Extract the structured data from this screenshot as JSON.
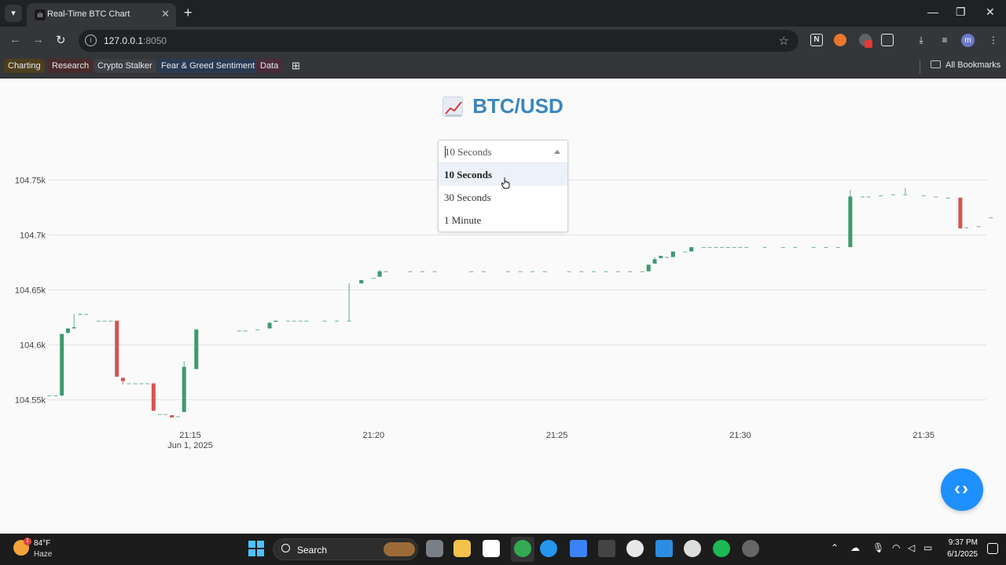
{
  "browser": {
    "tab_title": "Real-Time BTC Chart",
    "url_host": "127.0.0.1",
    "url_port": ":8050",
    "bookmarks": [
      {
        "label": "Charting",
        "color": "#4d3f1e"
      },
      {
        "label": "Research",
        "color": "#4a2b2b"
      },
      {
        "label": "Crypto Stalker",
        "color": "#3d3f44"
      },
      {
        "label": "Fear & Greed Sentiment",
        "color": "#283a52"
      },
      {
        "label": "Data",
        "color": "#4a2b3a"
      }
    ],
    "all_bookmarks": "All Bookmarks",
    "avatar_letter": "m"
  },
  "page": {
    "title": "BTC/USD",
    "interval_select": {
      "value": "10 Seconds",
      "options": [
        "10 Seconds",
        "30 Seconds",
        "1 Minute"
      ],
      "highlighted": "10 Seconds"
    }
  },
  "chart_data": {
    "type": "candlestick",
    "xlabel": "",
    "ylabel": "",
    "x_ticks": [
      "21:15",
      "21:20",
      "21:25",
      "21:30",
      "21:35"
    ],
    "x_date_label": "Jun 1, 2025",
    "y_ticks": [
      "104.55k",
      "104.6k",
      "104.65k",
      "104.7k",
      "104.75k"
    ],
    "y_tick_values": [
      104550,
      104600,
      104650,
      104700,
      104750
    ],
    "ylim": [
      104525,
      104770
    ],
    "x_range_minutes": [
      21.2,
      21.6
    ],
    "up_color": "#3d9970",
    "down_color": "#d9534f",
    "candles": [
      {
        "t": "21:11:10",
        "o": 104554,
        "h": 104554,
        "l": 104554,
        "c": 104554
      },
      {
        "t": "21:11:20",
        "o": 104554,
        "h": 104554,
        "l": 104554,
        "c": 104554
      },
      {
        "t": "21:11:30",
        "o": 104554,
        "h": 104610,
        "l": 104553,
        "c": 104610
      },
      {
        "t": "21:11:40",
        "o": 104611,
        "h": 104615,
        "l": 104610,
        "c": 104615
      },
      {
        "t": "21:11:50",
        "o": 104615,
        "h": 104628,
        "l": 104615,
        "c": 104616
      },
      {
        "t": "21:12:00",
        "o": 104628,
        "h": 104629,
        "l": 104628,
        "c": 104628
      },
      {
        "t": "21:12:10",
        "o": 104628,
        "h": 104628,
        "l": 104628,
        "c": 104628
      },
      {
        "t": "21:12:30",
        "o": 104622,
        "h": 104622,
        "l": 104622,
        "c": 104622
      },
      {
        "t": "21:12:40",
        "o": 104622,
        "h": 104622,
        "l": 104622,
        "c": 104622
      },
      {
        "t": "21:12:50",
        "o": 104622,
        "h": 104622,
        "l": 104622,
        "c": 104622
      },
      {
        "t": "21:13:00",
        "o": 104622,
        "h": 104622,
        "l": 104571,
        "c": 104571
      },
      {
        "t": "21:13:10",
        "o": 104570,
        "h": 104570,
        "l": 104564,
        "c": 104567
      },
      {
        "t": "21:13:20",
        "o": 104565,
        "h": 104565,
        "l": 104565,
        "c": 104565
      },
      {
        "t": "21:13:30",
        "o": 104565,
        "h": 104565,
        "l": 104565,
        "c": 104565
      },
      {
        "t": "21:13:40",
        "o": 104565,
        "h": 104565,
        "l": 104565,
        "c": 104565
      },
      {
        "t": "21:13:50",
        "o": 104565,
        "h": 104565,
        "l": 104565,
        "c": 104565
      },
      {
        "t": "21:14:00",
        "o": 104565,
        "h": 104565,
        "l": 104540,
        "c": 104540
      },
      {
        "t": "21:14:10",
        "o": 104537,
        "h": 104537,
        "l": 104537,
        "c": 104537
      },
      {
        "t": "21:14:20",
        "o": 104537,
        "h": 104537,
        "l": 104537,
        "c": 104537
      },
      {
        "t": "21:14:30",
        "o": 104536,
        "h": 104536,
        "l": 104534,
        "c": 104534
      },
      {
        "t": "21:14:40",
        "o": 104535,
        "h": 104535,
        "l": 104535,
        "c": 104535
      },
      {
        "t": "21:14:50",
        "o": 104539,
        "h": 104585,
        "l": 104539,
        "c": 104580
      },
      {
        "t": "21:15:10",
        "o": 104578,
        "h": 104614,
        "l": 104578,
        "c": 104614
      },
      {
        "t": "21:16:20",
        "o": 104613,
        "h": 104613,
        "l": 104613,
        "c": 104613
      },
      {
        "t": "21:16:30",
        "o": 104613,
        "h": 104613,
        "l": 104613,
        "c": 104613
      },
      {
        "t": "21:16:50",
        "o": 104614,
        "h": 104614,
        "l": 104614,
        "c": 104614
      },
      {
        "t": "21:17:10",
        "o": 104615,
        "h": 104621,
        "l": 104615,
        "c": 104620
      },
      {
        "t": "21:17:20",
        "o": 104621,
        "h": 104622,
        "l": 104621,
        "c": 104622
      },
      {
        "t": "21:17:40",
        "o": 104622,
        "h": 104622,
        "l": 104622,
        "c": 104622
      },
      {
        "t": "21:17:50",
        "o": 104622,
        "h": 104622,
        "l": 104622,
        "c": 104622
      },
      {
        "t": "21:18:00",
        "o": 104622,
        "h": 104622,
        "l": 104622,
        "c": 104622
      },
      {
        "t": "21:18:10",
        "o": 104622,
        "h": 104622,
        "l": 104622,
        "c": 104622
      },
      {
        "t": "21:18:40",
        "o": 104622,
        "h": 104622,
        "l": 104622,
        "c": 104622
      },
      {
        "t": "21:19:00",
        "o": 104622,
        "h": 104622,
        "l": 104622,
        "c": 104622
      },
      {
        "t": "21:19:20",
        "o": 104622,
        "h": 104656,
        "l": 104622,
        "c": 104622
      },
      {
        "t": "21:19:40",
        "o": 104656,
        "h": 104659,
        "l": 104656,
        "c": 104659
      },
      {
        "t": "21:20:00",
        "o": 104661,
        "h": 104661,
        "l": 104661,
        "c": 104661
      },
      {
        "t": "21:20:10",
        "o": 104662,
        "h": 104668,
        "l": 104662,
        "c": 104667
      },
      {
        "t": "21:20:20",
        "o": 104667,
        "h": 104667,
        "l": 104667,
        "c": 104667
      },
      {
        "t": "21:21:00",
        "o": 104667,
        "h": 104667,
        "l": 104667,
        "c": 104667
      },
      {
        "t": "21:21:20",
        "o": 104667,
        "h": 104667,
        "l": 104667,
        "c": 104667
      },
      {
        "t": "21:21:40",
        "o": 104667,
        "h": 104667,
        "l": 104667,
        "c": 104667
      },
      {
        "t": "21:22:40",
        "o": 104667,
        "h": 104667,
        "l": 104667,
        "c": 104667
      },
      {
        "t": "21:23:00",
        "o": 104667,
        "h": 104667,
        "l": 104667,
        "c": 104667
      },
      {
        "t": "21:23:40",
        "o": 104667,
        "h": 104667,
        "l": 104667,
        "c": 104667
      },
      {
        "t": "21:24:00",
        "o": 104667,
        "h": 104667,
        "l": 104667,
        "c": 104667
      },
      {
        "t": "21:24:20",
        "o": 104667,
        "h": 104667,
        "l": 104667,
        "c": 104667
      },
      {
        "t": "21:24:40",
        "o": 104667,
        "h": 104667,
        "l": 104667,
        "c": 104667
      },
      {
        "t": "21:25:20",
        "o": 104667,
        "h": 104667,
        "l": 104667,
        "c": 104667
      },
      {
        "t": "21:25:40",
        "o": 104667,
        "h": 104667,
        "l": 104667,
        "c": 104667
      },
      {
        "t": "21:26:00",
        "o": 104667,
        "h": 104667,
        "l": 104667,
        "c": 104667
      },
      {
        "t": "21:26:20",
        "o": 104667,
        "h": 104667,
        "l": 104667,
        "c": 104667
      },
      {
        "t": "21:26:40",
        "o": 104667,
        "h": 104667,
        "l": 104667,
        "c": 104667
      },
      {
        "t": "21:27:00",
        "o": 104667,
        "h": 104667,
        "l": 104667,
        "c": 104667
      },
      {
        "t": "21:27:20",
        "o": 104667,
        "h": 104667,
        "l": 104667,
        "c": 104667
      },
      {
        "t": "21:27:30",
        "o": 104667,
        "h": 104673,
        "l": 104667,
        "c": 104673
      },
      {
        "t": "21:27:40",
        "o": 104674,
        "h": 104680,
        "l": 104674,
        "c": 104678
      },
      {
        "t": "21:27:50",
        "o": 104679,
        "h": 104681,
        "l": 104679,
        "c": 104681
      },
      {
        "t": "21:28:00",
        "o": 104680,
        "h": 104680,
        "l": 104680,
        "c": 104680
      },
      {
        "t": "21:28:10",
        "o": 104680,
        "h": 104685,
        "l": 104680,
        "c": 104685
      },
      {
        "t": "21:28:30",
        "o": 104685,
        "h": 104685,
        "l": 104685,
        "c": 104685
      },
      {
        "t": "21:28:40",
        "o": 104685,
        "h": 104689,
        "l": 104685,
        "c": 104689
      },
      {
        "t": "21:29:00",
        "o": 104689,
        "h": 104689,
        "l": 104689,
        "c": 104689
      },
      {
        "t": "21:29:10",
        "o": 104689,
        "h": 104689,
        "l": 104689,
        "c": 104689
      },
      {
        "t": "21:29:20",
        "o": 104689,
        "h": 104689,
        "l": 104689,
        "c": 104689
      },
      {
        "t": "21:29:30",
        "o": 104689,
        "h": 104689,
        "l": 104689,
        "c": 104689
      },
      {
        "t": "21:29:40",
        "o": 104689,
        "h": 104689,
        "l": 104689,
        "c": 104689
      },
      {
        "t": "21:29:50",
        "o": 104689,
        "h": 104689,
        "l": 104689,
        "c": 104689
      },
      {
        "t": "21:30:00",
        "o": 104689,
        "h": 104689,
        "l": 104689,
        "c": 104689
      },
      {
        "t": "21:30:10",
        "o": 104689,
        "h": 104689,
        "l": 104689,
        "c": 104689
      },
      {
        "t": "21:30:40",
        "o": 104689,
        "h": 104689,
        "l": 104689,
        "c": 104689
      },
      {
        "t": "21:31:10",
        "o": 104689,
        "h": 104689,
        "l": 104689,
        "c": 104689
      },
      {
        "t": "21:31:30",
        "o": 104689,
        "h": 104689,
        "l": 104689,
        "c": 104689
      },
      {
        "t": "21:32:00",
        "o": 104689,
        "h": 104689,
        "l": 104689,
        "c": 104689
      },
      {
        "t": "21:32:20",
        "o": 104689,
        "h": 104689,
        "l": 104689,
        "c": 104689
      },
      {
        "t": "21:32:40",
        "o": 104689,
        "h": 104689,
        "l": 104689,
        "c": 104689
      },
      {
        "t": "21:33:00",
        "o": 104689,
        "h": 104741,
        "l": 104689,
        "c": 104735
      },
      {
        "t": "21:33:20",
        "o": 104735,
        "h": 104735,
        "l": 104735,
        "c": 104735
      },
      {
        "t": "21:33:30",
        "o": 104735,
        "h": 104735,
        "l": 104735,
        "c": 104735
      },
      {
        "t": "21:33:50",
        "o": 104736,
        "h": 104736,
        "l": 104736,
        "c": 104736
      },
      {
        "t": "21:34:10",
        "o": 104737,
        "h": 104737,
        "l": 104737,
        "c": 104737
      },
      {
        "t": "21:34:30",
        "o": 104737,
        "h": 104743,
        "l": 104737,
        "c": 104737
      },
      {
        "t": "21:35:00",
        "o": 104736,
        "h": 104736,
        "l": 104736,
        "c": 104736
      },
      {
        "t": "21:35:20",
        "o": 104735,
        "h": 104735,
        "l": 104735,
        "c": 104735
      },
      {
        "t": "21:35:40",
        "o": 104734,
        "h": 104734,
        "l": 104734,
        "c": 104734
      },
      {
        "t": "21:36:00",
        "o": 104734,
        "h": 104734,
        "l": 104706,
        "c": 104706
      },
      {
        "t": "21:36:10",
        "o": 104707,
        "h": 104707,
        "l": 104707,
        "c": 104707
      },
      {
        "t": "21:36:30",
        "o": 104708,
        "h": 104708,
        "l": 104708,
        "c": 104708
      },
      {
        "t": "21:36:50",
        "o": 104716,
        "h": 104716,
        "l": 104716,
        "c": 104716
      }
    ]
  },
  "taskbar": {
    "weather_temp": "84°F",
    "weather_cond": "Haze",
    "weather_badge": "1",
    "search_label": "Search",
    "time": "9:37 PM",
    "date": "6/1/2025"
  }
}
